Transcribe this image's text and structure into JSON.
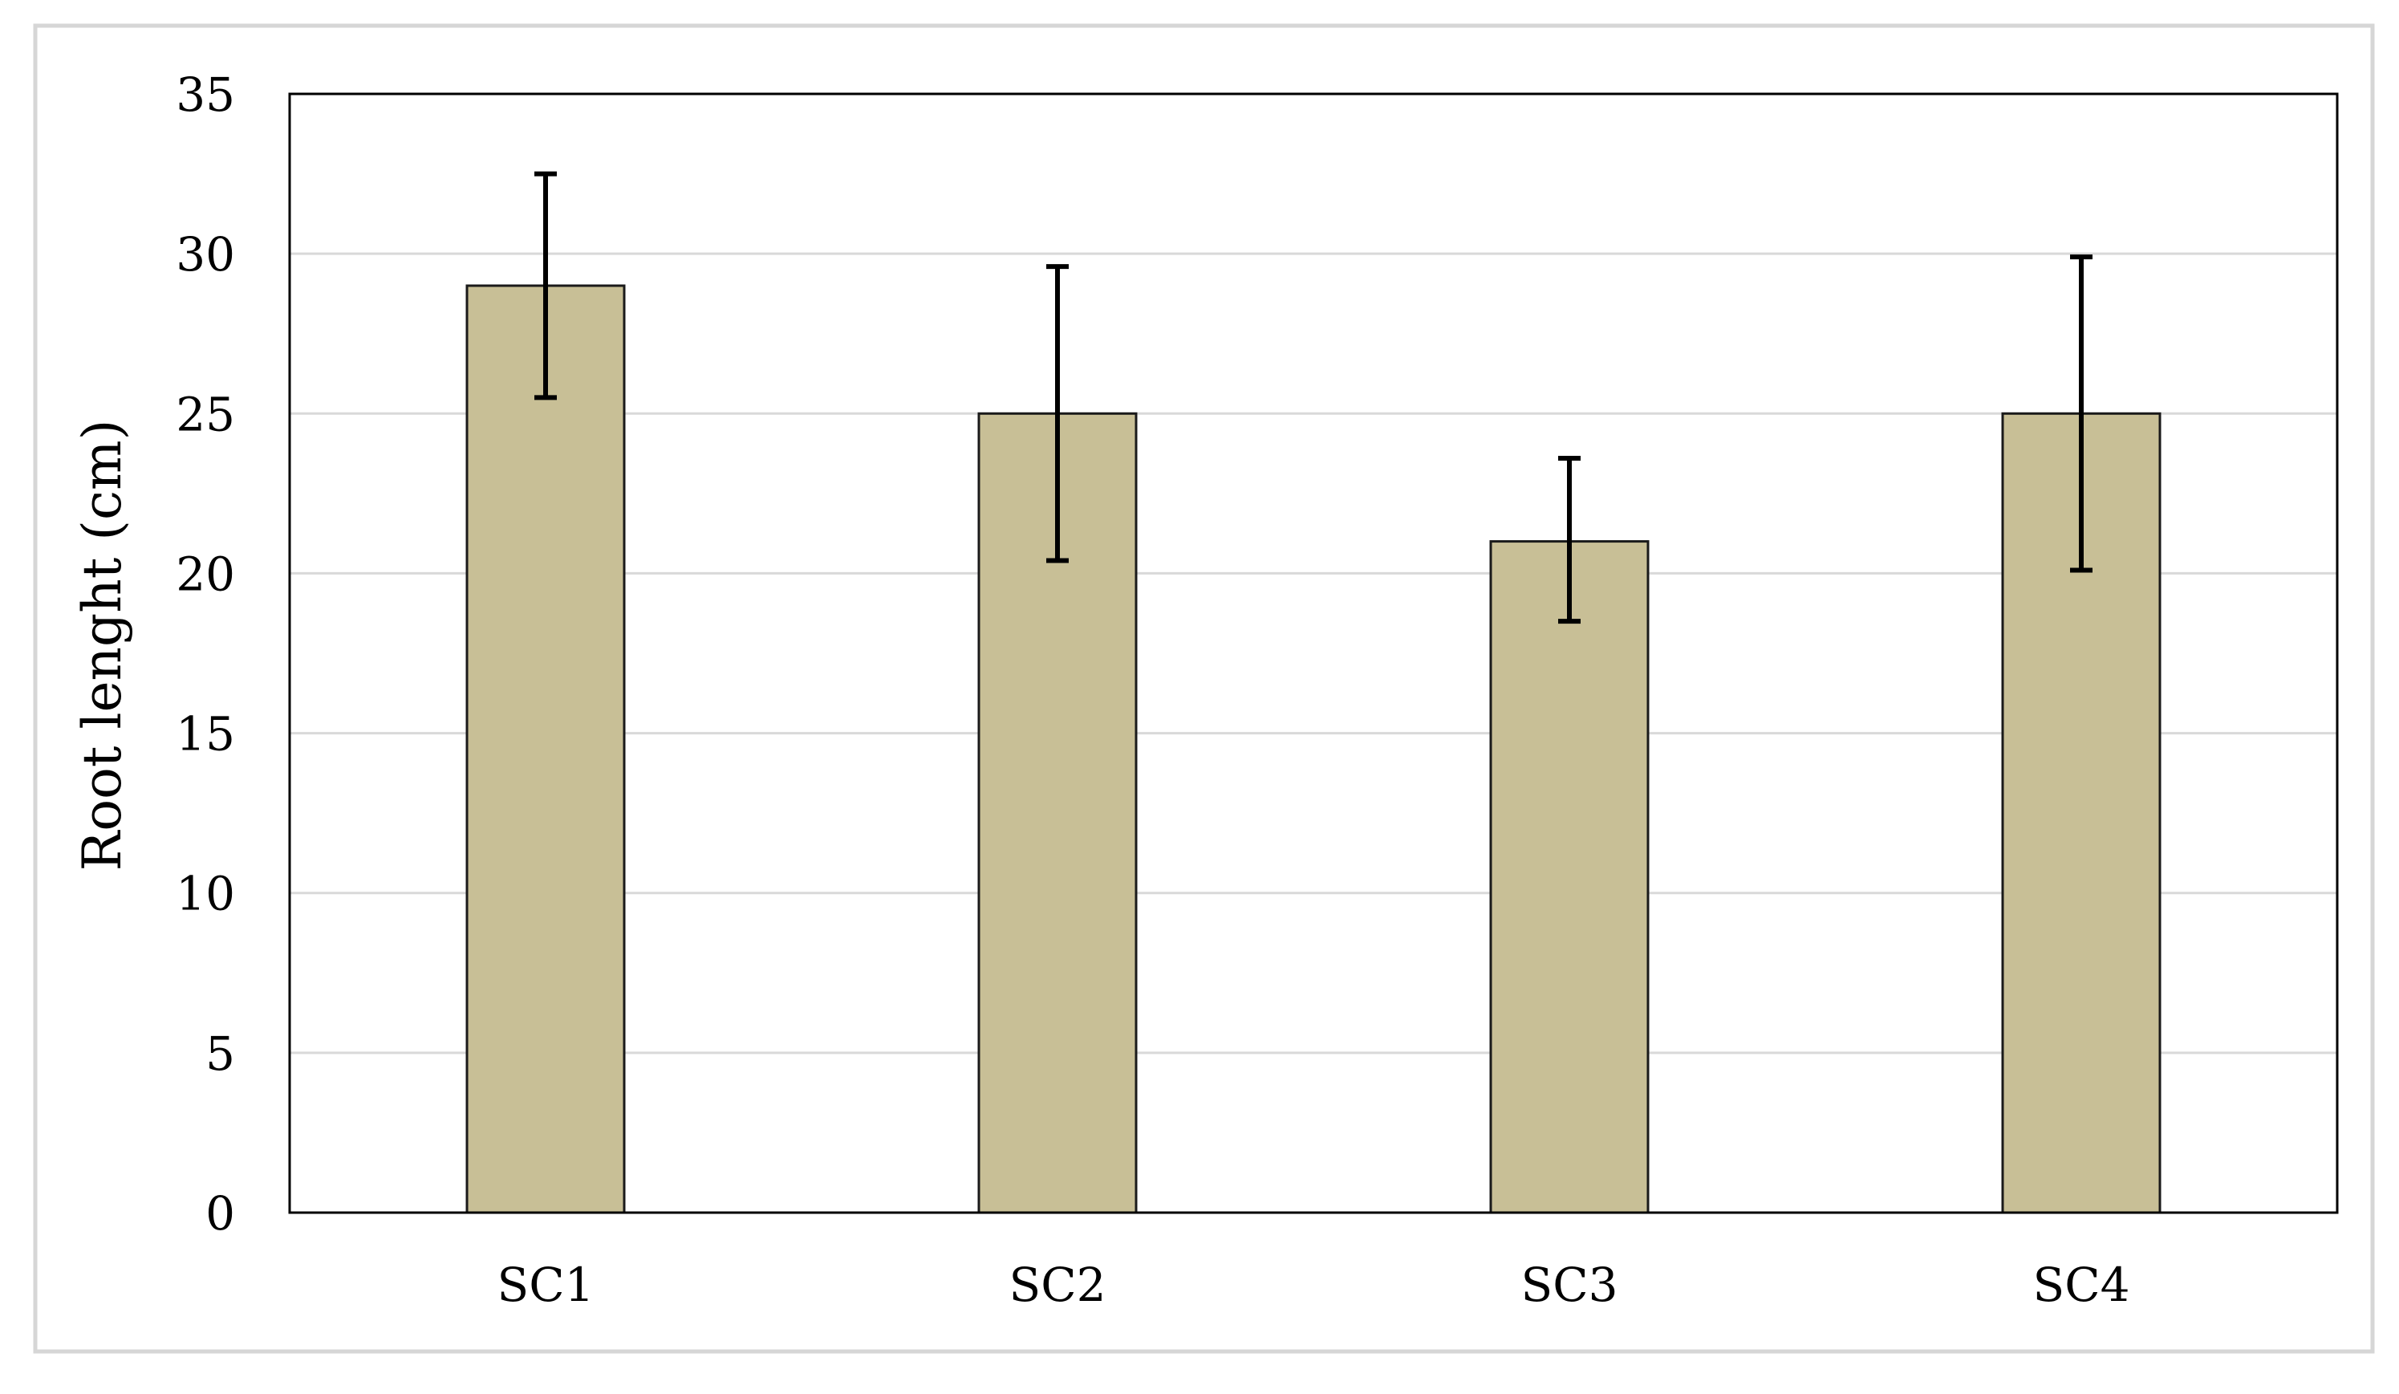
{
  "chart_data": {
    "type": "bar",
    "title": "",
    "xlabel": "",
    "ylabel": "Root lenght (cm)",
    "categories": [
      "SC1",
      "SC2",
      "SC3",
      "SC4"
    ],
    "values": [
      29,
      25,
      21,
      25
    ],
    "error_upper": [
      32.5,
      29.6,
      23.6,
      29.9
    ],
    "error_lower": [
      25.5,
      20.4,
      18.5,
      20.1
    ],
    "ylim": [
      0,
      35
    ],
    "yticks": [
      0,
      5,
      10,
      15,
      20,
      25,
      30,
      35
    ],
    "ytick_labels": [
      "0",
      "5",
      "10",
      "15",
      "20",
      "25",
      "30",
      "35"
    ],
    "grid": "horizontal",
    "legend": "none",
    "colors": {
      "bar_fill": "#c8bf96",
      "bar_stroke": "#1a1a1a",
      "grid": "#d9d9d9",
      "error_bar": "#000000",
      "frame": "#d6d6d6"
    }
  }
}
